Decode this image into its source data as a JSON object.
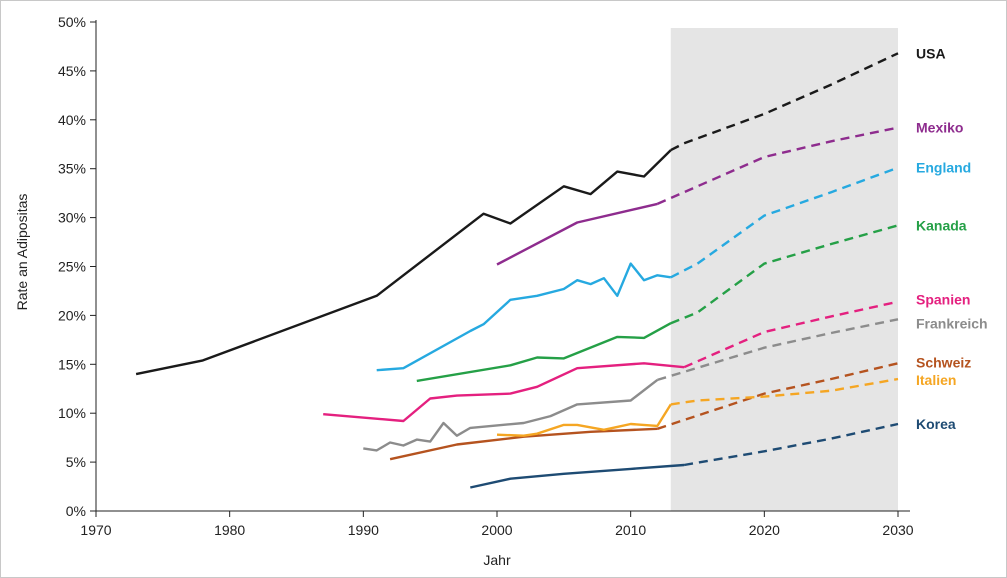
{
  "chart_data": {
    "type": "line",
    "title": "",
    "xlabel": "Jahr",
    "ylabel": "Rate an Adipositas",
    "xlim": [
      1970,
      2030
    ],
    "ylim": [
      0,
      50
    ],
    "x_ticks": [
      "1970",
      "1980",
      "1990",
      "2000",
      "2010",
      "2020",
      "2030"
    ],
    "y_ticks": [
      "0%",
      "5%",
      "10%",
      "15%",
      "20%",
      "25%",
      "30%",
      "35%",
      "40%",
      "45%",
      "50%"
    ],
    "grid": false,
    "projection_region": [
      2013,
      2030
    ],
    "series": [
      {
        "name": "USA",
        "color": "#1a1a1a",
        "actual": [
          [
            1973,
            14.0
          ],
          [
            1978,
            15.4
          ],
          [
            1991,
            22.0
          ],
          [
            1999,
            30.4
          ],
          [
            2001,
            29.4
          ],
          [
            2005,
            33.2
          ],
          [
            2007,
            32.4
          ],
          [
            2009,
            34.7
          ],
          [
            2011,
            34.2
          ],
          [
            2013,
            36.9
          ]
        ],
        "projection": [
          [
            2013,
            36.9
          ],
          [
            2014,
            37.6
          ],
          [
            2020,
            40.6
          ],
          [
            2025,
            43.6
          ],
          [
            2030,
            46.8
          ]
        ]
      },
      {
        "name": "Mexiko",
        "color": "#8e2c8e",
        "actual": [
          [
            2000,
            25.2
          ],
          [
            2006,
            29.5
          ],
          [
            2012,
            31.4
          ]
        ],
        "projection": [
          [
            2012,
            31.4
          ],
          [
            2015,
            33.2
          ],
          [
            2020,
            36.2
          ],
          [
            2025,
            37.8
          ],
          [
            2030,
            39.2
          ]
        ]
      },
      {
        "name": "England",
        "color": "#26a9e0",
        "actual": [
          [
            1991,
            14.4
          ],
          [
            1993,
            14.6
          ],
          [
            1998,
            18.4
          ],
          [
            1999,
            19.1
          ],
          [
            2001,
            21.6
          ],
          [
            2003,
            22.0
          ],
          [
            2005,
            22.7
          ],
          [
            2006,
            23.6
          ],
          [
            2007,
            23.2
          ],
          [
            2008,
            23.8
          ],
          [
            2009,
            22.0
          ],
          [
            2010,
            25.3
          ],
          [
            2011,
            23.6
          ],
          [
            2012,
            24.1
          ],
          [
            2013,
            23.9
          ]
        ],
        "projection": [
          [
            2013,
            23.9
          ],
          [
            2015,
            25.3
          ],
          [
            2020,
            30.2
          ],
          [
            2025,
            32.6
          ],
          [
            2030,
            35.1
          ]
        ]
      },
      {
        "name": "Kanada",
        "color": "#25a047",
        "actual": [
          [
            1994,
            13.3
          ],
          [
            2001,
            14.9
          ],
          [
            2003,
            15.7
          ],
          [
            2005,
            15.6
          ],
          [
            2009,
            17.8
          ],
          [
            2011,
            17.7
          ],
          [
            2013,
            19.2
          ]
        ],
        "projection": [
          [
            2013,
            19.2
          ],
          [
            2015,
            20.3
          ],
          [
            2020,
            25.3
          ],
          [
            2025,
            27.3
          ],
          [
            2030,
            29.2
          ]
        ]
      },
      {
        "name": "Spanien",
        "color": "#e4207f",
        "actual": [
          [
            1987,
            9.9
          ],
          [
            1993,
            9.2
          ],
          [
            1995,
            11.5
          ],
          [
            1997,
            11.8
          ],
          [
            2001,
            12.0
          ],
          [
            2003,
            12.7
          ],
          [
            2006,
            14.6
          ],
          [
            2011,
            15.1
          ],
          [
            2014,
            14.7
          ]
        ],
        "projection": [
          [
            2014,
            14.7
          ],
          [
            2020,
            18.3
          ],
          [
            2025,
            19.9
          ],
          [
            2030,
            21.4
          ]
        ]
      },
      {
        "name": "Frankreich",
        "color": "#8c8c8c",
        "actual": [
          [
            1990,
            6.4
          ],
          [
            1991,
            6.2
          ],
          [
            1992,
            7.0
          ],
          [
            1993,
            6.7
          ],
          [
            1994,
            7.3
          ],
          [
            1995,
            7.1
          ],
          [
            1996,
            9.0
          ],
          [
            1997,
            7.7
          ],
          [
            1998,
            8.5
          ],
          [
            2002,
            9.0
          ],
          [
            2004,
            9.7
          ],
          [
            2006,
            10.9
          ],
          [
            2010,
            11.3
          ],
          [
            2012,
            13.4
          ]
        ],
        "projection": [
          [
            2012,
            13.4
          ],
          [
            2020,
            16.7
          ],
          [
            2025,
            18.2
          ],
          [
            2030,
            19.6
          ]
        ]
      },
      {
        "name": "Schweiz",
        "color": "#b5531f",
        "actual": [
          [
            1992,
            5.3
          ],
          [
            1997,
            6.8
          ],
          [
            2002,
            7.6
          ],
          [
            2007,
            8.1
          ],
          [
            2012,
            8.4
          ]
        ],
        "projection": [
          [
            2012,
            8.4
          ],
          [
            2020,
            12.0
          ],
          [
            2025,
            13.5
          ],
          [
            2030,
            15.1
          ]
        ]
      },
      {
        "name": "Italien",
        "color": "#f5a623",
        "actual": [
          [
            2000,
            7.8
          ],
          [
            2002,
            7.7
          ],
          [
            2003,
            7.9
          ],
          [
            2005,
            8.8
          ],
          [
            2006,
            8.8
          ],
          [
            2008,
            8.3
          ],
          [
            2009,
            8.6
          ],
          [
            2010,
            8.9
          ],
          [
            2012,
            8.7
          ],
          [
            2013,
            10.9
          ]
        ],
        "projection": [
          [
            2013,
            10.9
          ],
          [
            2015,
            11.3
          ],
          [
            2020,
            11.7
          ],
          [
            2025,
            12.3
          ],
          [
            2030,
            13.5
          ]
        ]
      },
      {
        "name": "Korea",
        "color": "#1e4b73",
        "actual": [
          [
            1998,
            2.4
          ],
          [
            2001,
            3.3
          ],
          [
            2005,
            3.8
          ],
          [
            2010,
            4.3
          ],
          [
            2014,
            4.7
          ]
        ],
        "projection": [
          [
            2014,
            4.7
          ],
          [
            2020,
            6.1
          ],
          [
            2025,
            7.4
          ],
          [
            2030,
            8.9
          ]
        ]
      }
    ]
  }
}
